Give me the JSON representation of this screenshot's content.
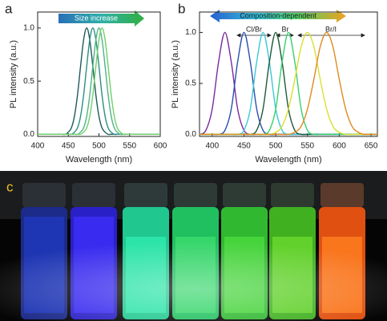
{
  "chart_data": [
    {
      "type": "line",
      "panel": "a",
      "xlabel": "Wavelength (nm)",
      "ylabel": "PL intensity (a.u.)",
      "annotations": [
        "Size increase"
      ],
      "xlim": [
        400,
        600
      ],
      "xticks": [
        400,
        450,
        500,
        550,
        600
      ],
      "ylim": [
        -0.02,
        1.15
      ],
      "yticks": [
        {
          "value": 0,
          "label": "0.0"
        },
        {
          "value": 0.5,
          "label": "0.5"
        },
        {
          "value": 1,
          "label": "1.0"
        }
      ],
      "x": [
        400,
        430,
        435,
        440,
        445,
        450,
        455,
        460,
        465,
        470,
        475,
        480,
        485,
        490,
        495,
        500,
        505,
        510,
        515,
        520,
        525,
        530,
        535,
        540,
        545,
        550,
        555,
        560,
        600
      ],
      "series": [
        {
          "color": "#1e5a5a",
          "values": [
            0,
            0,
            0,
            0,
            0,
            0.02,
            0.06,
            0.17,
            0.37,
            0.64,
            0.89,
            1,
            0.89,
            0.64,
            0.37,
            0.17,
            0.06,
            0.02,
            0,
            0,
            0,
            0,
            0,
            0,
            0,
            0,
            0,
            0,
            0
          ]
        },
        {
          "color": "#2b8f80",
          "values": [
            0,
            0,
            0,
            0,
            0,
            0,
            0,
            0.02,
            0.06,
            0.17,
            0.37,
            0.64,
            0.89,
            1,
            0.89,
            0.64,
            0.37,
            0.17,
            0.06,
            0.02,
            0,
            0,
            0,
            0,
            0,
            0,
            0,
            0,
            0
          ]
        },
        {
          "color": "#4fb387",
          "values": [
            0,
            0,
            0,
            0,
            0,
            0,
            0,
            0,
            0,
            0.02,
            0.06,
            0.17,
            0.37,
            0.64,
            0.89,
            1,
            0.89,
            0.64,
            0.37,
            0.17,
            0.06,
            0.02,
            0,
            0,
            0,
            0,
            0,
            0,
            0
          ]
        },
        {
          "color": "#6fd06a",
          "values": [
            0,
            0,
            0,
            0,
            0,
            0,
            0,
            0,
            0,
            0,
            0.02,
            0.06,
            0.17,
            0.37,
            0.64,
            0.89,
            1,
            0.89,
            0.64,
            0.37,
            0.17,
            0.06,
            0.02,
            0,
            0,
            0,
            0,
            0,
            0
          ]
        }
      ]
    },
    {
      "type": "line",
      "panel": "b",
      "xlabel": "Wavelength (nm)",
      "ylabel": "PL intensity (a.u.)",
      "annotations": [
        "Composition-dependent",
        "Cl/Br",
        "Br",
        "Br/I"
      ],
      "xlim": [
        380,
        660
      ],
      "xticks": [
        400,
        450,
        500,
        550,
        600,
        650
      ],
      "ylim": [
        -0.02,
        1.2
      ],
      "yticks": [
        {
          "value": 0,
          "label": "0.0"
        },
        {
          "value": 0.5,
          "label": "0.5"
        },
        {
          "value": 1,
          "label": "1.0"
        }
      ],
      "x": [
        380,
        390,
        400,
        410,
        420,
        430,
        440,
        450,
        460,
        470,
        480,
        490,
        500,
        510,
        520,
        530,
        540,
        550,
        560,
        570,
        580,
        590,
        600,
        610,
        620,
        630,
        640,
        650,
        660
      ],
      "series": [
        {
          "color": "#7a2aa0",
          "values": [
            0,
            0.04,
            0.25,
            0.71,
            1,
            0.71,
            0.25,
            0.04,
            0,
            0,
            0,
            0,
            0,
            0,
            0,
            0,
            0,
            0,
            0,
            0,
            0,
            0,
            0,
            0,
            0,
            0,
            0,
            0,
            0
          ]
        },
        {
          "color": "#2a4fb0",
          "values": [
            0,
            0,
            0,
            0,
            0.04,
            0.25,
            0.71,
            1,
            0.71,
            0.25,
            0.04,
            0,
            0,
            0,
            0,
            0,
            0,
            0,
            0,
            0,
            0,
            0,
            0,
            0,
            0,
            0,
            0,
            0,
            0
          ]
        },
        {
          "color": "#3cc8d8",
          "values": [
            0,
            0,
            0,
            0,
            0,
            0,
            0,
            0.04,
            0.25,
            0.71,
            1,
            0.71,
            0.25,
            0.04,
            0,
            0,
            0,
            0,
            0,
            0,
            0,
            0,
            0,
            0,
            0,
            0,
            0,
            0,
            0
          ]
        },
        {
          "color": "#1f5a3a",
          "values": [
            0,
            0,
            0,
            0,
            0,
            0,
            0,
            0,
            0,
            0.04,
            0.25,
            0.71,
            1,
            0.71,
            0.25,
            0.04,
            0,
            0,
            0,
            0,
            0,
            0,
            0,
            0,
            0,
            0,
            0,
            0,
            0
          ]
        },
        {
          "color": "#38d070",
          "values": [
            0,
            0,
            0,
            0,
            0,
            0,
            0,
            0,
            0,
            0,
            0,
            0.04,
            0.25,
            0.71,
            1,
            0.71,
            0.25,
            0.04,
            0,
            0,
            0,
            0,
            0,
            0,
            0,
            0,
            0,
            0,
            0
          ]
        },
        {
          "color": "#d8e030",
          "values": [
            0,
            0,
            0,
            0,
            0,
            0,
            0,
            0,
            0,
            0,
            0,
            0,
            0.02,
            0.08,
            0.25,
            0.54,
            0.86,
            1,
            0.86,
            0.54,
            0.25,
            0.08,
            0.02,
            0,
            0,
            0,
            0,
            0,
            0
          ]
        },
        {
          "color": "#e08a20",
          "values": [
            0,
            0,
            0,
            0,
            0,
            0,
            0,
            0,
            0,
            0,
            0,
            0,
            0,
            0,
            0,
            0.02,
            0.08,
            0.25,
            0.54,
            0.86,
            1,
            0.86,
            0.54,
            0.25,
            0.08,
            0.02,
            0,
            0,
            0
          ]
        }
      ]
    }
  ],
  "photo": {
    "label": "c"
  }
}
